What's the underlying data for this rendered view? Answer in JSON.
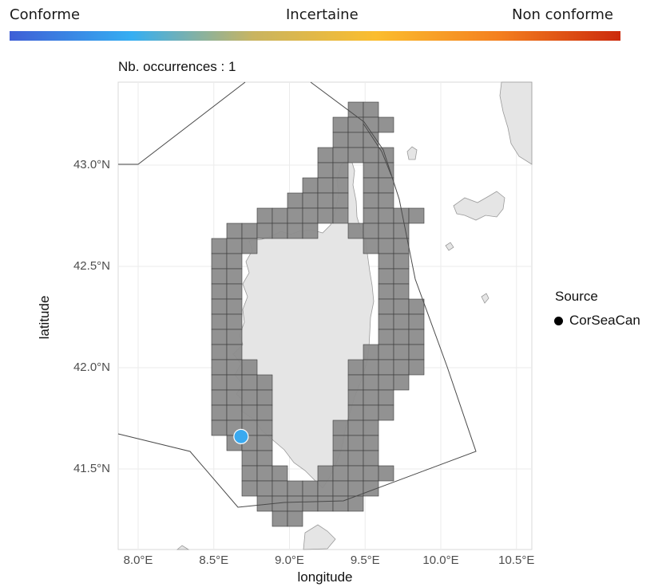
{
  "scale": {
    "left_label": "Conforme",
    "middle_label": "Incertaine",
    "right_label": "Non conforme",
    "colors": [
      "#3f5fd6",
      "#35aef2",
      "#c9b460",
      "#fbbd2e",
      "#f4801f",
      "#cc2a0c"
    ]
  },
  "map": {
    "subtitle": "Nb. occurrences : 1",
    "x_axis_title": "longitude",
    "y_axis_title": "latitude",
    "x_ticks": [
      "8.0°E",
      "8.5°E",
      "9.0°E",
      "9.5°E",
      "10.0°E",
      "10.5°E"
    ],
    "y_ticks": [
      "43.0°N",
      "42.5°N",
      "42.0°N",
      "41.5°N"
    ],
    "land_color": "#e5e5e5",
    "grid_cell_color": "#8c8c8c",
    "point_color": "#3aa9ef",
    "occurrence": {
      "lon": 8.68,
      "lat": 41.66
    }
  },
  "legend": {
    "title": "Source",
    "items": [
      {
        "label": "CorSeaCan",
        "color": "#000000"
      }
    ]
  }
}
